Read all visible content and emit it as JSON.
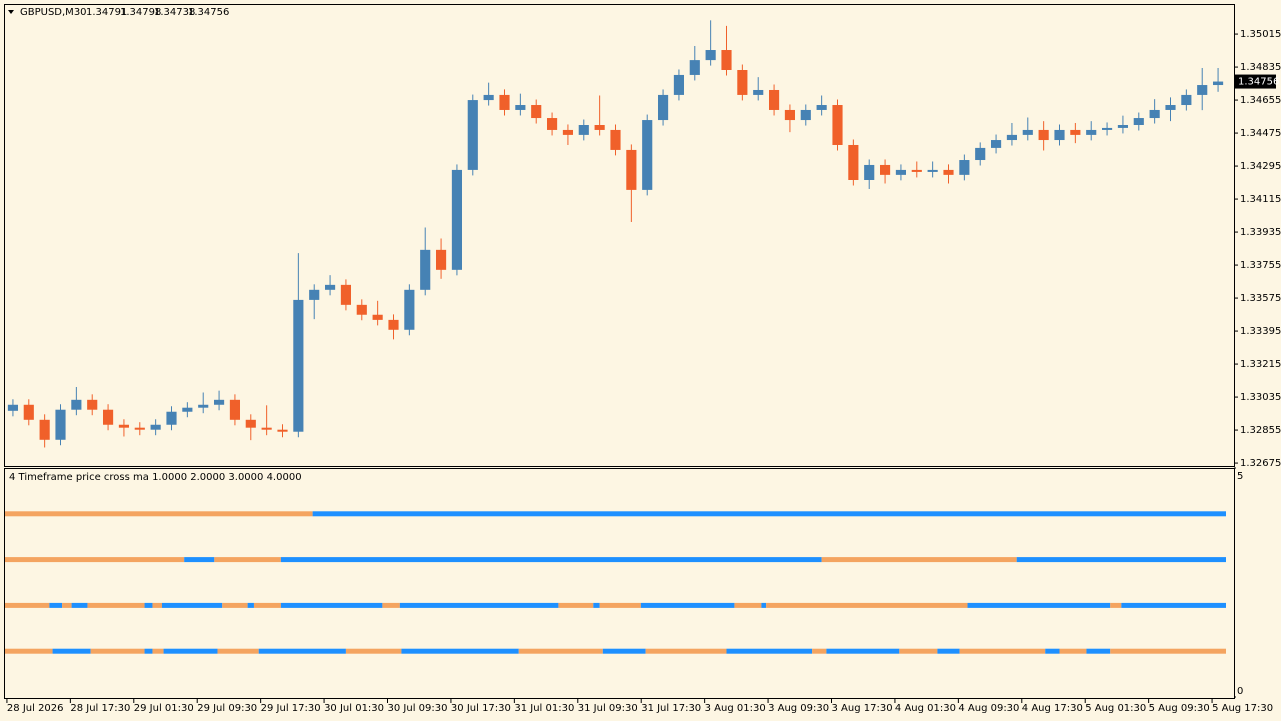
{
  "chart_data": [
    {
      "type": "candlestick",
      "title": "GBPUSD,M30",
      "quote": [
        1.34791,
        1.34798,
        1.34738,
        1.34756
      ],
      "up_color": "#4682b4",
      "down_color": "#f0602a",
      "open": [
        1.3296,
        1.32993,
        1.32911,
        1.32802,
        1.32966,
        1.3302,
        1.32966,
        1.32884,
        1.32868,
        1.32857,
        1.32884,
        1.32955,
        1.32977,
        1.32993,
        1.3302,
        1.32911,
        1.32868,
        1.32857,
        1.32846,
        1.33565,
        1.3362,
        1.33647,
        1.33538,
        1.33484,
        1.33456,
        1.33402,
        1.3362,
        1.33838,
        1.33729,
        1.34274,
        1.34655,
        1.34683,
        1.34601,
        1.34628,
        1.34557,
        1.34492,
        1.34465,
        1.34519,
        1.34492,
        1.34383,
        1.34165,
        1.34546,
        1.34683,
        1.34792,
        1.34873,
        1.34928,
        1.34819,
        1.34683,
        1.3471,
        1.34601,
        1.34546,
        1.34601,
        1.34628,
        1.3441,
        1.34219,
        1.34301,
        1.34247,
        1.34274,
        1.34263,
        1.34274,
        1.34247,
        1.34328,
        1.34394,
        1.34437,
        1.34465,
        1.34492,
        1.34437,
        1.34492,
        1.34465,
        1.34492,
        1.34503,
        1.34519,
        1.34557,
        1.34601,
        1.34628,
        1.34683,
        1.34737
      ],
      "high": [
        1.33023,
        1.33023,
        1.32941,
        1.32996,
        1.3309,
        1.3305,
        1.32996,
        1.32914,
        1.32898,
        1.32914,
        1.32985,
        1.33007,
        1.3306,
        1.3307,
        1.3305,
        1.32941,
        1.3299,
        1.32887,
        1.3382,
        1.3365,
        1.337,
        1.33677,
        1.33568,
        1.3356,
        1.33486,
        1.3365,
        1.3396,
        1.339,
        1.34304,
        1.34685,
        1.3475,
        1.34713,
        1.3469,
        1.34658,
        1.34587,
        1.34522,
        1.34549,
        1.3468,
        1.34522,
        1.34413,
        1.34576,
        1.34713,
        1.34822,
        1.3495,
        1.3509,
        1.3506,
        1.34849,
        1.3478,
        1.3474,
        1.34631,
        1.34631,
        1.3468,
        1.34658,
        1.3444,
        1.34331,
        1.34331,
        1.34304,
        1.3432,
        1.3432,
        1.34304,
        1.34358,
        1.34424,
        1.34467,
        1.3453,
        1.3456,
        1.3454,
        1.34522,
        1.3453,
        1.3454,
        1.34533,
        1.3457,
        1.34587,
        1.3466,
        1.3467,
        1.34713,
        1.3483,
        1.3483
      ],
      "low": [
        1.3293,
        1.32881,
        1.3276,
        1.32772,
        1.32936,
        1.32936,
        1.32854,
        1.3282,
        1.32827,
        1.32827,
        1.32854,
        1.32925,
        1.32947,
        1.32963,
        1.32881,
        1.328,
        1.32827,
        1.32816,
        1.32816,
        1.3346,
        1.3359,
        1.33508,
        1.33454,
        1.33426,
        1.3335,
        1.33372,
        1.3359,
        1.3368,
        1.33699,
        1.34244,
        1.34625,
        1.34571,
        1.34571,
        1.34527,
        1.34462,
        1.3441,
        1.34435,
        1.34462,
        1.34353,
        1.3399,
        1.34135,
        1.34516,
        1.34653,
        1.34762,
        1.34843,
        1.34789,
        1.34653,
        1.34653,
        1.34571,
        1.3448,
        1.34516,
        1.34571,
        1.3438,
        1.34189,
        1.3417,
        1.342,
        1.34217,
        1.34233,
        1.34233,
        1.342,
        1.34217,
        1.34298,
        1.34364,
        1.34407,
        1.34435,
        1.3438,
        1.34407,
        1.3442,
        1.34435,
        1.34462,
        1.34473,
        1.34489,
        1.34527,
        1.3454,
        1.34598,
        1.346,
        1.347
      ],
      "close": [
        1.32993,
        1.32911,
        1.32802,
        1.32966,
        1.3302,
        1.32966,
        1.32884,
        1.32868,
        1.32857,
        1.32884,
        1.32955,
        1.32977,
        1.32993,
        1.3302,
        1.32911,
        1.32868,
        1.32857,
        1.32846,
        1.33565,
        1.3362,
        1.33647,
        1.33538,
        1.33484,
        1.33456,
        1.33402,
        1.3362,
        1.33838,
        1.33729,
        1.34274,
        1.34655,
        1.34683,
        1.34601,
        1.34628,
        1.34557,
        1.34492,
        1.34465,
        1.34519,
        1.34492,
        1.34383,
        1.34165,
        1.34546,
        1.34683,
        1.34792,
        1.34873,
        1.34928,
        1.34819,
        1.34683,
        1.3471,
        1.34601,
        1.34546,
        1.34601,
        1.34628,
        1.3441,
        1.34219,
        1.34301,
        1.34247,
        1.34274,
        1.34263,
        1.34274,
        1.34247,
        1.34328,
        1.34394,
        1.34437,
        1.34465,
        1.34492,
        1.34437,
        1.34492,
        1.34465,
        1.34492,
        1.34503,
        1.34519,
        1.34557,
        1.34601,
        1.34628,
        1.34683,
        1.34737,
        1.34756
      ],
      "ylim": [
        1.32659,
        1.35179
      ],
      "yticks": [
        1.35015,
        1.34835,
        1.34655,
        1.34475,
        1.34295,
        1.34115,
        1.33935,
        1.33755,
        1.33575,
        1.33395,
        1.33215,
        1.33035,
        1.32855,
        1.32675
      ],
      "xticks": [
        {
          "value": 0,
          "label": "28 Jul 2026"
        },
        {
          "value": 4,
          "label": "28 Jul 17:30"
        },
        {
          "value": 8,
          "label": "29 Jul 01:30"
        },
        {
          "value": 12,
          "label": "29 Jul 09:30"
        },
        {
          "value": 16,
          "label": "29 Jul 17:30"
        },
        {
          "value": 20,
          "label": "30 Jul 01:30"
        },
        {
          "value": 24,
          "label": "30 Jul 09:30"
        },
        {
          "value": 28,
          "label": "30 Jul 17:30"
        },
        {
          "value": 32,
          "label": "31 Jul 01:30"
        },
        {
          "value": 36,
          "label": "31 Jul 09:30"
        },
        {
          "value": 40,
          "label": "31 Jul 17:30"
        },
        {
          "value": 44,
          "label": "3 Aug 01:30"
        },
        {
          "value": 48,
          "label": "3 Aug 09:30"
        },
        {
          "value": 52,
          "label": "3 Aug 17:30"
        },
        {
          "value": 56,
          "label": "4 Aug 01:30"
        },
        {
          "value": 60,
          "label": "4 Aug 09:30"
        },
        {
          "value": 64,
          "label": "4 Aug 17:30"
        },
        {
          "value": 68,
          "label": "5 Aug 01:30"
        },
        {
          "value": 72,
          "label": "5 Aug 09:30"
        },
        {
          "value": 76,
          "label": "5 Aug 17:30"
        }
      ]
    },
    {
      "type": "state-bars",
      "title": "4 Timeframe price cross ma 1.0000 2.0000 3.0000 4.0000",
      "state_colors": [
        "#f4a460",
        "#1e90ff"
      ],
      "ylim": [
        0,
        5
      ],
      "yticks": [
        5,
        0
      ],
      "series": [
        {
          "level": 4,
          "segments": [
            [
              0,
              19.4,
              0
            ],
            [
              19.4,
              77,
              1
            ]
          ]
        },
        {
          "level": 3,
          "segments": [
            [
              0,
              11.3,
              0
            ],
            [
              11.3,
              13.2,
              1
            ],
            [
              13.2,
              17.4,
              0
            ],
            [
              17.4,
              51.5,
              1
            ],
            [
              51.5,
              63.8,
              0
            ],
            [
              63.8,
              77,
              1
            ]
          ]
        },
        {
          "level": 2,
          "segments": [
            [
              0,
              2.8,
              0
            ],
            [
              2.8,
              3.6,
              1
            ],
            [
              3.6,
              4.2,
              0
            ],
            [
              4.2,
              5.2,
              1
            ],
            [
              5.2,
              8.8,
              0
            ],
            [
              8.8,
              9.3,
              1
            ],
            [
              9.3,
              9.9,
              0
            ],
            [
              9.9,
              13.7,
              1
            ],
            [
              13.7,
              15.3,
              0
            ],
            [
              15.3,
              15.7,
              1
            ],
            [
              15.7,
              17.4,
              0
            ],
            [
              17.4,
              23.8,
              1
            ],
            [
              23.8,
              24.9,
              0
            ],
            [
              24.9,
              34.9,
              1
            ],
            [
              34.9,
              37.1,
              0
            ],
            [
              37.1,
              37.5,
              1
            ],
            [
              37.5,
              40.1,
              0
            ],
            [
              40.1,
              46.0,
              1
            ],
            [
              46.0,
              47.7,
              0
            ],
            [
              47.7,
              48.0,
              1
            ],
            [
              48.0,
              60.7,
              0
            ],
            [
              60.7,
              69.7,
              1
            ],
            [
              69.7,
              70.4,
              0
            ],
            [
              70.4,
              77,
              1
            ]
          ]
        },
        {
          "level": 1,
          "segments": [
            [
              0,
              3.0,
              0
            ],
            [
              3.0,
              5.4,
              1
            ],
            [
              5.4,
              8.8,
              0
            ],
            [
              8.8,
              9.3,
              1
            ],
            [
              9.3,
              10.0,
              0
            ],
            [
              10.0,
              13.4,
              1
            ],
            [
              13.4,
              16.0,
              0
            ],
            [
              16.0,
              21.5,
              1
            ],
            [
              21.5,
              25.0,
              0
            ],
            [
              25.0,
              32.4,
              1
            ],
            [
              32.4,
              37.7,
              0
            ],
            [
              37.7,
              40.4,
              1
            ],
            [
              40.4,
              45.5,
              0
            ],
            [
              45.5,
              50.9,
              1
            ],
            [
              50.9,
              51.8,
              0
            ],
            [
              51.8,
              56.4,
              1
            ],
            [
              56.4,
              58.8,
              0
            ],
            [
              58.8,
              60.2,
              1
            ],
            [
              60.2,
              65.6,
              0
            ],
            [
              65.6,
              66.5,
              1
            ],
            [
              66.5,
              68.2,
              0
            ],
            [
              68.2,
              69.7,
              1
            ],
            [
              69.7,
              77,
              0
            ]
          ]
        }
      ]
    }
  ]
}
